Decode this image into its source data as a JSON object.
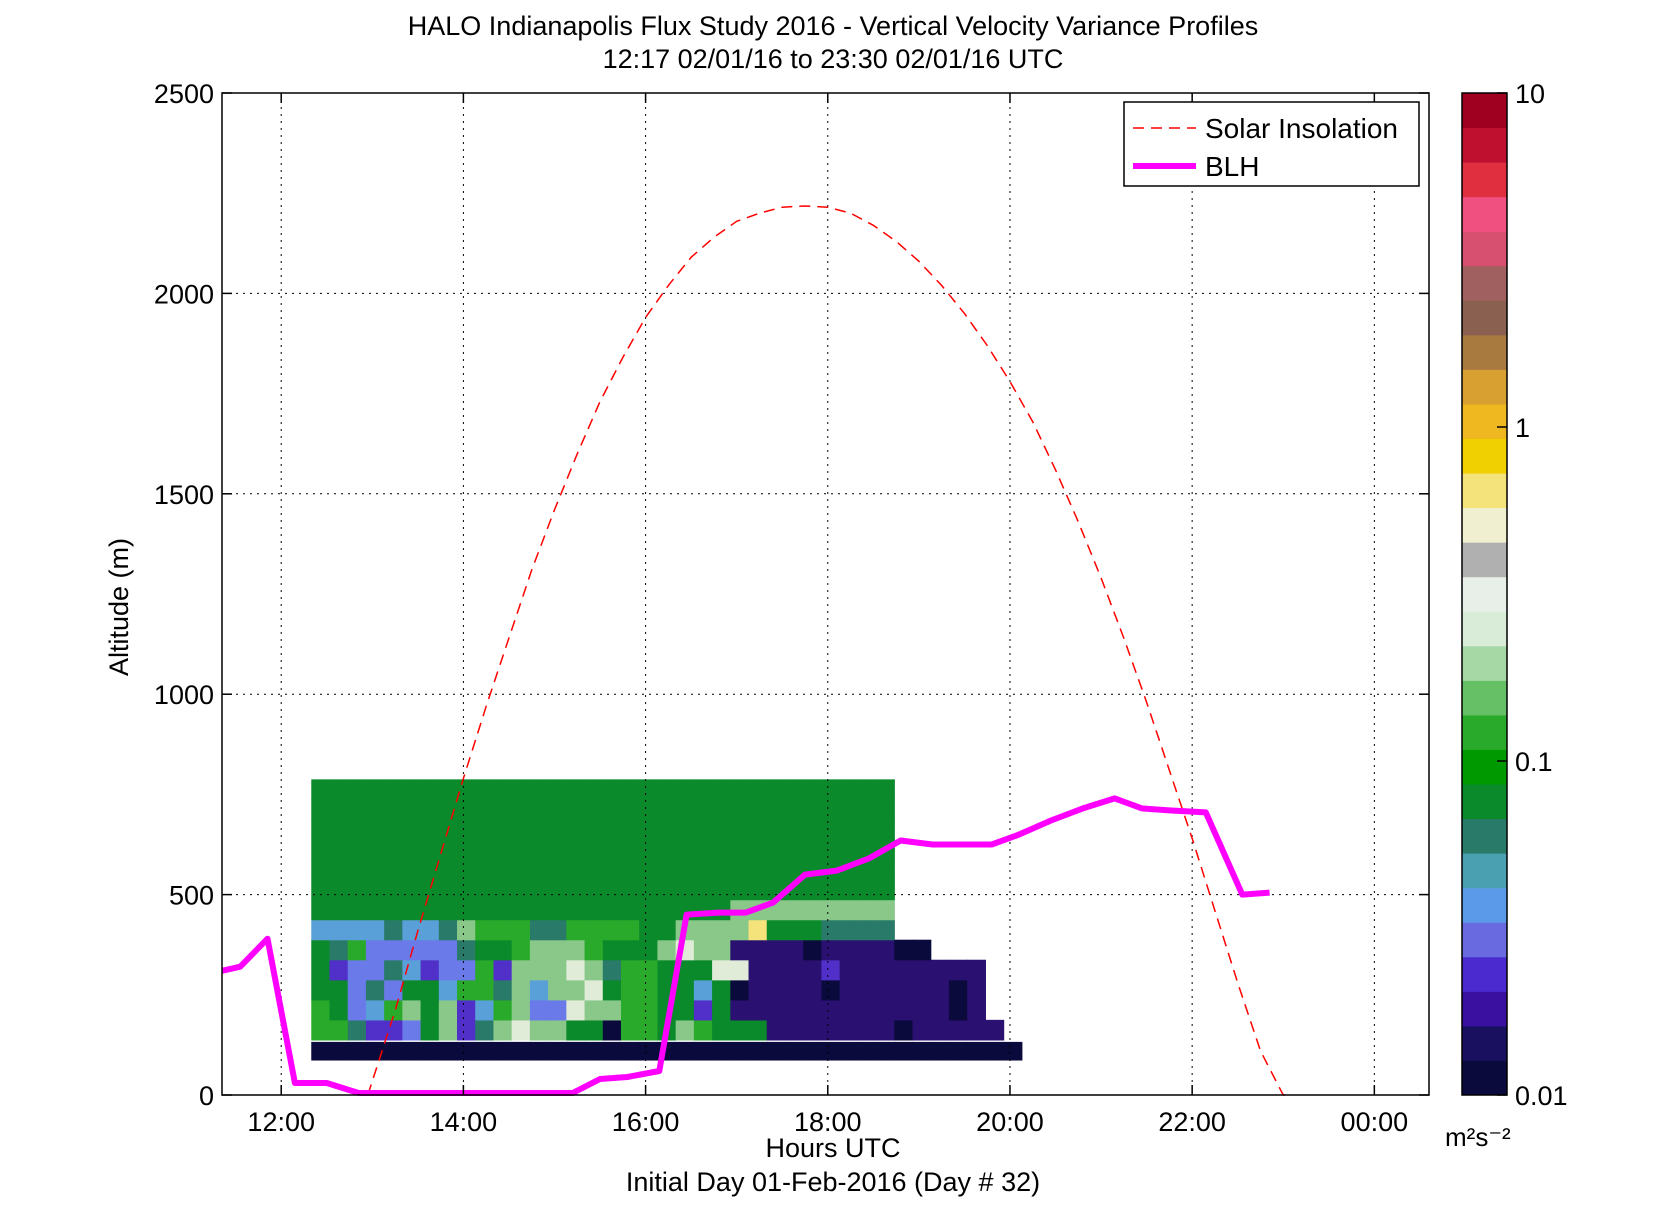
{
  "chart_data": {
    "type": "heatmap",
    "title": "HALO Indianapolis Flux Study 2016 - Vertical Velocity Variance Profiles",
    "subtitle": "12:17 02/01/16 to 23:30 02/01/16  UTC",
    "xlabel": "Hours UTC",
    "xlabel2": "Initial Day 01-Feb-2016 (Day # 32)",
    "ylabel": "Altitude (m)",
    "xlim": [
      11.35,
      24.6
    ],
    "ylim": [
      0,
      2500
    ],
    "grid": true,
    "x_ticks": [
      12,
      14,
      16,
      18,
      20,
      22,
      24
    ],
    "x_tick_labels": [
      "12:00",
      "14:00",
      "16:00",
      "18:00",
      "20:00",
      "22:00",
      "00:00"
    ],
    "y_ticks": [
      0,
      500,
      1000,
      1500,
      2000,
      2500
    ],
    "y_tick_labels": [
      "0",
      "500",
      "1000",
      "1500",
      "2000",
      "2500"
    ],
    "legend": {
      "placement": "top-right",
      "entries": [
        {
          "label": "Solar Insolation",
          "style": "dashed",
          "color": "#ff0000"
        },
        {
          "label": "BLH",
          "style": "solid-thick",
          "color": "#ff00ff"
        }
      ]
    },
    "colorbar": {
      "scale": "log",
      "range": [
        0.01,
        10
      ],
      "tick_labels": [
        "0.01",
        "0.1",
        "1",
        "10"
      ],
      "unit_label": "m²s⁻²",
      "colors": [
        "#0a0a3c",
        "#1a1060",
        "#3a10a0",
        "#4b2bd0",
        "#6a6ae0",
        "#5a9ae8",
        "#4aa0b0",
        "#2a7a6a",
        "#0a8a2a",
        "#009a00",
        "#2aaa2a",
        "#66c066",
        "#a6d8a6",
        "#d8ecd8",
        "#e8efe8",
        "#b0b0b0",
        "#f0f0d0",
        "#f4e27a",
        "#f0d000",
        "#f0b820",
        "#d8a030",
        "#a87a40",
        "#8a6050",
        "#a06060",
        "#d85070",
        "#f05080",
        "#e03040",
        "#c01030",
        "#a00020"
      ]
    },
    "heatmap": {
      "x0": 12.33,
      "dx": 0.2,
      "y0": 87.5,
      "dy": 50,
      "levels": [
        0.004,
        0.012,
        0.02,
        0.03,
        0.04,
        0.06,
        0.08,
        0.1,
        0.2,
        0.3,
        0.5,
        0.8,
        1.0
      ],
      "palette": [
        "#0a0a3c",
        "#2a1070",
        "#5030c8",
        "#6a7ae8",
        "#5aa0d8",
        "#2a7a6a",
        "#0a8a2a",
        "#2aaa2a",
        "#8ac88a",
        "#e0ecd8",
        "#f4e27a",
        "#f0c800",
        "#e0a020"
      ],
      "rows": [
        "000000000000000000000000000000000000000",
        "77522368258988660776876661111111011111",
        "7634786824783398877662611111111111101",
        "6635366477584889677664601111011111101",
        "6233542337288898577666991111211111111",
        "6573333356678887666898811110111100",
        "444454458777557777668888A6665555",
        "66666666666666666666666888888888",
        "66666666666666666666666666666666",
        "66666666666666666666666666666666",
        "66666666666666666666666666666666",
        "66666666666666666666666666666666",
        "66666666666666666666666666666666",
        "66666666666666666666666666666666"
      ]
    },
    "series": [
      {
        "name": "Solar Insolation",
        "style": "dashed",
        "x": [
          12.95,
          13.25,
          13.5,
          13.75,
          14.0,
          14.25,
          14.5,
          14.75,
          15.0,
          15.25,
          15.5,
          15.75,
          16.0,
          16.25,
          16.5,
          16.75,
          17.0,
          17.25,
          17.5,
          17.75,
          18.0,
          18.25,
          18.5,
          18.75,
          19.0,
          19.25,
          19.5,
          19.75,
          20.0,
          20.25,
          20.5,
          20.75,
          21.0,
          21.25,
          21.5,
          21.75,
          22.0,
          22.25,
          22.5,
          22.75,
          23.0,
          23.1
        ],
        "y": [
          0,
          210,
          410,
          600,
          790,
          970,
          1140,
          1310,
          1460,
          1600,
          1730,
          1840,
          1940,
          2020,
          2090,
          2140,
          2180,
          2200,
          2215,
          2218,
          2215,
          2200,
          2170,
          2130,
          2080,
          2020,
          1950,
          1870,
          1780,
          1680,
          1560,
          1430,
          1290,
          1140,
          980,
          810,
          640,
          460,
          280,
          110,
          0,
          0
        ]
      },
      {
        "name": "BLH",
        "style": "solid",
        "x": [
          11.35,
          11.55,
          11.85,
          12.15,
          12.5,
          12.85,
          13.2,
          13.55,
          13.9,
          14.3,
          14.7,
          15.1,
          15.2,
          15.5,
          15.8,
          16.15,
          16.45,
          16.8,
          17.1,
          17.4,
          17.75,
          18.1,
          18.45,
          18.8,
          19.15,
          19.5,
          19.8,
          20.1,
          20.45,
          20.8,
          21.15,
          21.45,
          21.75,
          22.15,
          22.55,
          22.85
        ],
        "y": [
          310,
          320,
          390,
          30,
          30,
          5,
          5,
          5,
          5,
          5,
          5,
          5,
          5,
          40,
          45,
          60,
          450,
          455,
          455,
          480,
          550,
          560,
          590,
          635,
          625,
          625,
          625,
          650,
          685,
          715,
          740,
          715,
          710,
          705,
          500,
          505
        ]
      }
    ]
  }
}
